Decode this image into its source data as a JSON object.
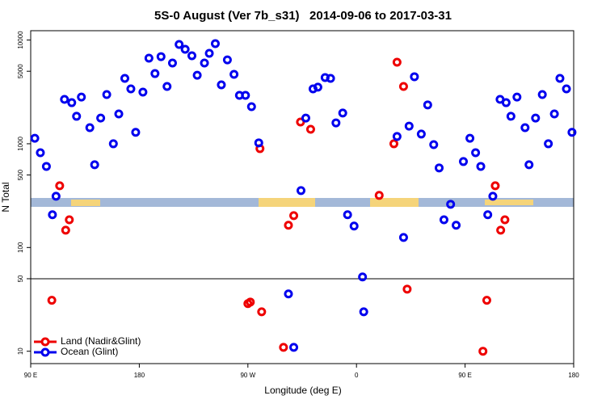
{
  "chart_data": {
    "type": "scatter",
    "title": "5S-0 August (Ver 7b_s31)   2014-09-06 to 2017-03-31",
    "x_label": "Longitude (deg E)",
    "y_label": "N Total",
    "log_y": true,
    "legend": "bottom-left",
    "hlines": [
      50
    ],
    "xlim": [
      90,
      540
    ],
    "xticks": [
      {
        "value": 90,
        "label": "90 E"
      },
      180,
      {
        "value": 270,
        "label": "90 W"
      },
      {
        "value": 360,
        "label": "0"
      },
      {
        "value": 450,
        "label": "90 E"
      },
      {
        "value": 540,
        "label": "180"
      }
    ],
    "ylim": [
      7.6,
      12300
    ],
    "yticks": [
      10,
      50,
      100,
      500,
      1000,
      5000,
      10000
    ],
    "series": [
      {
        "name": "Land (Nadir&Glint)",
        "color": "#ee0000",
        "x": [
          114,
          107.5,
          122,
          119,
          270,
          272,
          281.4,
          280,
          299.5,
          303.6,
          308,
          313.6,
          322,
          378.8,
          391,
          393.6,
          399,
          402,
          464.8,
          468,
          475,
          483,
          479.5
        ],
        "values": [
          394,
          31,
          185,
          147,
          28.8,
          29.8,
          24,
          898,
          10.9,
          164,
          203,
          1620,
          1380,
          318,
          1000,
          6110,
          3570,
          39.7,
          10,
          31,
          394,
          185,
          147
        ]
      },
      {
        "name": "Ocean (Glint)",
        "color": "#0000ee",
        "x": [
          93.4,
          98,
          103,
          111,
          108,
          118,
          124,
          128,
          132,
          139,
          143,
          148,
          153,
          158.5,
          163,
          168,
          173,
          177,
          183,
          188,
          193,
          198,
          203,
          207.5,
          213,
          218,
          223.6,
          228,
          234,
          238,
          243,
          248,
          253,
          258.5,
          263,
          268,
          273,
          279,
          314,
          318,
          324,
          328,
          334,
          338.5,
          343,
          348.6,
          352.6,
          358,
          303.6,
          308,
          365,
          366,
          393.6,
          399,
          403.6,
          408,
          413.7,
          419,
          424,
          428.5,
          432.5,
          438,
          442.6,
          448.6,
          454,
          458.7,
          463,
          468.8,
          473,
          479,
          484,
          488,
          493,
          499.7,
          503,
          508.4,
          514,
          519,
          524,
          528.6,
          534,
          538.6
        ],
        "values": [
          1130,
          820,
          605,
          312,
          207,
          2680,
          2490,
          1840,
          2820,
          1430,
          628,
          1770,
          2980,
          1000,
          1940,
          4270,
          3380,
          1290,
          3150,
          6690,
          4750,
          6920,
          3570,
          6000,
          9060,
          8140,
          7050,
          4580,
          6000,
          7450,
          9230,
          3700,
          6440,
          4670,
          2930,
          2930,
          2280,
          1020,
          354,
          1770,
          3380,
          3510,
          4350,
          4270,
          1590,
          1980,
          207,
          161,
          35.7,
          10.9,
          52,
          24,
          1175,
          125,
          1480,
          4430,
          1240,
          2370,
          981,
          585,
          185,
          261,
          164,
          674,
          1130,
          820,
          605,
          207,
          312,
          2680,
          2490,
          1840,
          2820,
          1430,
          628,
          1770,
          2980,
          1000,
          1940,
          4270,
          3380,
          1290
        ]
      }
    ]
  }
}
